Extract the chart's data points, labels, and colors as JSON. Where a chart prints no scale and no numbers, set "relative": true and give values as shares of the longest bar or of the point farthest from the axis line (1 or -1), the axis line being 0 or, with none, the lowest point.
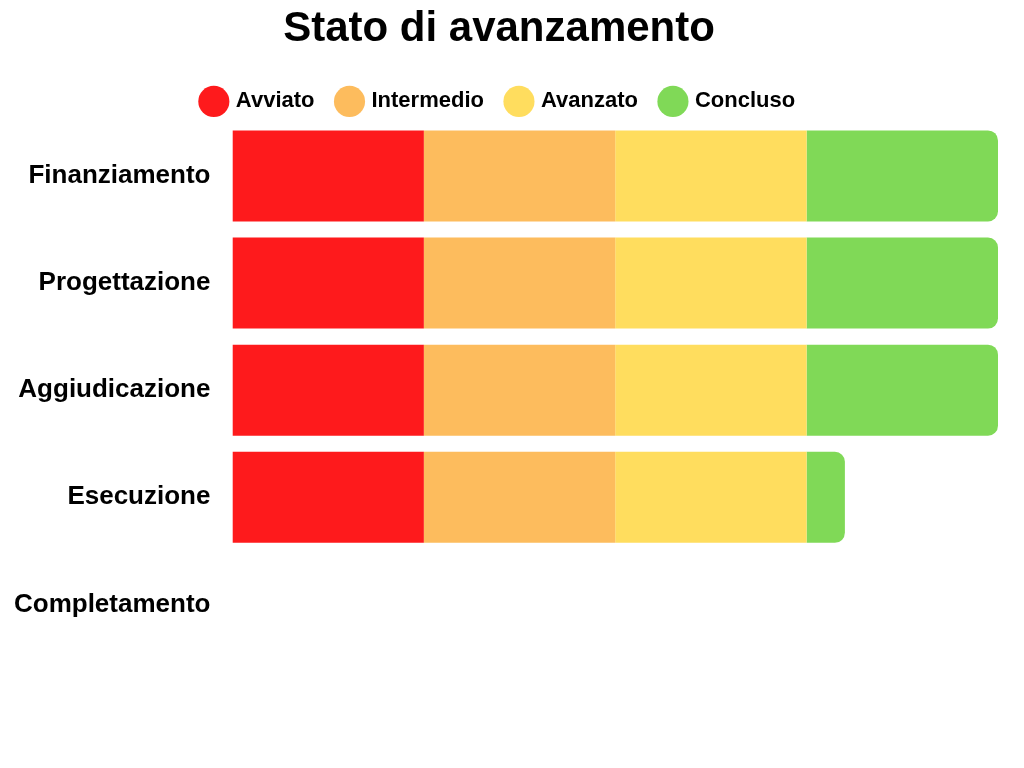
{
  "chart_data": {
    "type": "bar",
    "title": "Stato di avanzamento",
    "orientation": "horizontal",
    "stacked": true,
    "relative": true,
    "legend": "top",
    "categories": [
      "Finanziamento",
      "Progettazione",
      "Aggiudicazione",
      "Esecuzione",
      "Completamento"
    ],
    "series": [
      {
        "name": "Avviato",
        "color": "#fe1a1c",
        "values": [
          0.25,
          0.25,
          0.25,
          0.25,
          0
        ]
      },
      {
        "name": "Intermedio",
        "color": "#fdbc5d",
        "values": [
          0.25,
          0.25,
          0.25,
          0.25,
          0
        ]
      },
      {
        "name": "Avanzato",
        "color": "#ffdd5e",
        "values": [
          0.25,
          0.25,
          0.25,
          0.25,
          0
        ]
      },
      {
        "name": "Concluso",
        "color": "#80d957",
        "values": [
          0.25,
          0.25,
          0.25,
          0.05,
          0
        ]
      }
    ]
  }
}
